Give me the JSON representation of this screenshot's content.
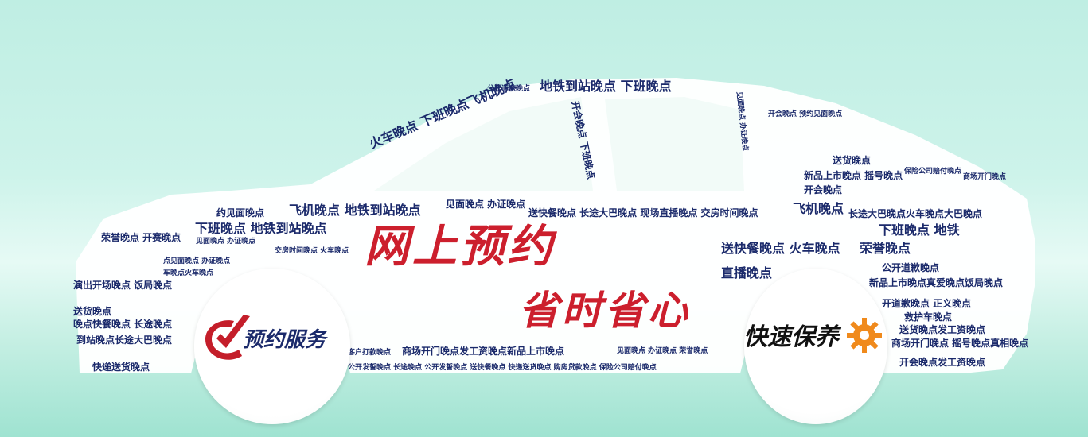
{
  "headline": {
    "line1": "网上预约",
    "line2": "省时省心"
  },
  "badges": {
    "left": {
      "label": "预约服务",
      "icon": "checkmark-icon"
    },
    "right": {
      "label": "快速保养",
      "icon": "gear-icon"
    }
  },
  "colors": {
    "background_top": "#bfeee3",
    "background_bottom": "#9fe3d1",
    "car_fill": "#ffffff",
    "word_color": "#1b2a6b",
    "headline_red": "#cc1f2d",
    "gear_orange": "#f08a1c"
  },
  "word_cloud": [
    "地铁到站晚点 下班晚点",
    "公开道歉晚点",
    "火车晚点 下班晚点飞机晚点",
    "开会晚点 下班晚点",
    "见面晚点 办证晚点",
    "约见面晚点",
    "飞机晚点 地铁到站晚点",
    "见面晚点 办证晚点",
    "下班晚点 地铁到站晚点",
    "荣誉晚点 开赛晚点",
    "送快餐晚点 长途大巴晚点 现场直播晚点 交房时间晚点",
    "飞机晚点",
    "长途大巴晚点火车晚点大巴晚点",
    "下班晚点 地铁",
    "送快餐晚点 火车晚点",
    "荣誉晚点",
    "公开道歉晚点",
    "直播晚点",
    "新品上市晚点真爱晚点饭局晚点",
    "开道歉晚点 正义晚点",
    "救护车晚点",
    "送货晚点发工资晚点",
    "演出开场晚点 饭局晚点",
    "送货晚点",
    "晚点快餐晚点 长途晚点",
    "到站晚点长途大巴晚点",
    "快递送货晚点",
    "客户打款晚点",
    "商场开门晚点发工资晚点新品上市晚点",
    "见面晚点 办证晚点 荣誉晚点",
    "公开发誓晚点 长途晚点 公开发誓晚点 送快餐晚点 快递送货晚点 购房贷款晚点 保险公司赔付晚点",
    "商场开门晚点 摇号晚点真相晚点",
    "开会晚点发工资晚点",
    "新品上市晚点 摇号晚点",
    "开会晚点",
    "送货晚点",
    "保险公司赔付晚点",
    "商场开门晚点",
    "交房时间晚点 火车晚点",
    "车晚点火车晚点",
    "点见面晚点 办证晚点",
    "见面晚点 办证晚点",
    "开会晚点 预约见面晚点"
  ]
}
